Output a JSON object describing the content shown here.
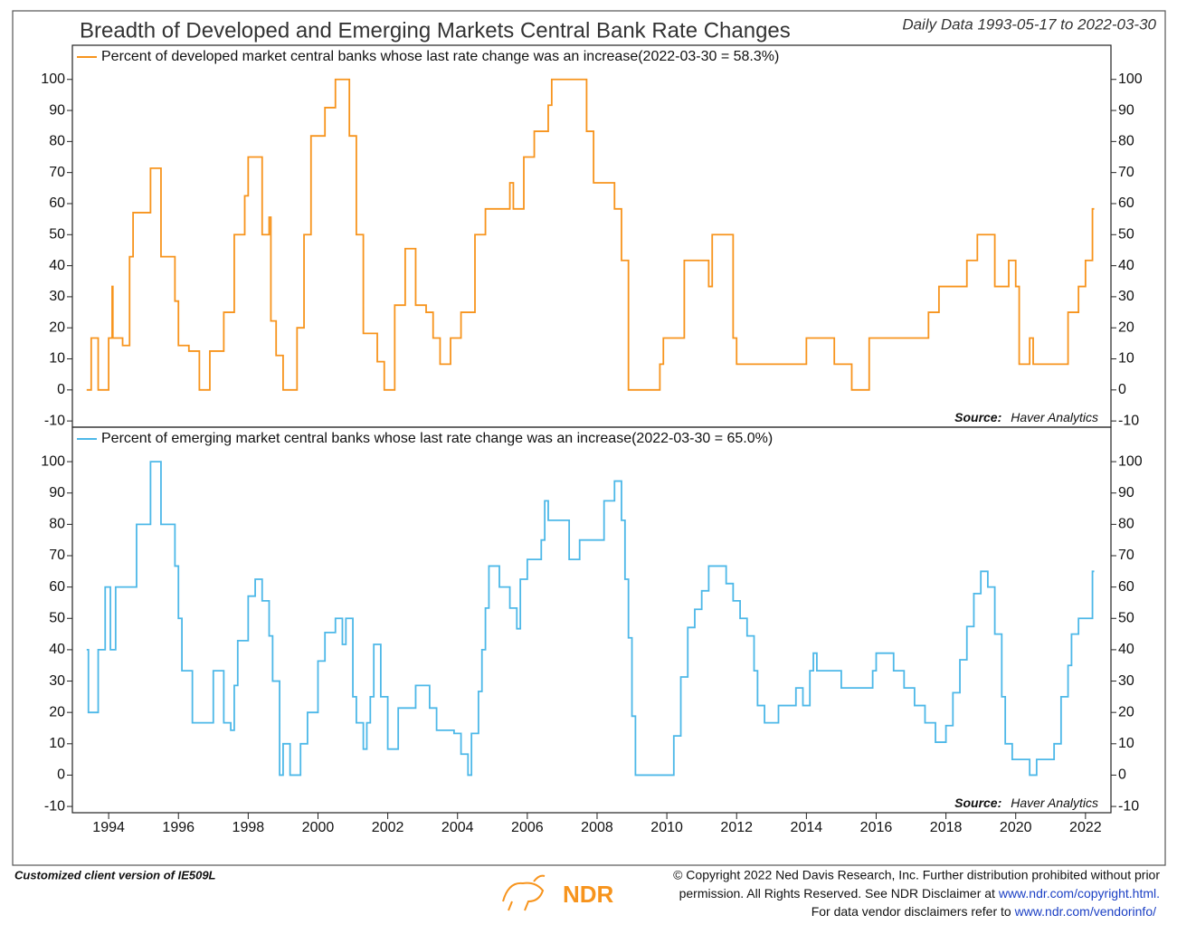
{
  "chart_data": [
    {
      "type": "line",
      "title": "Breadth of Developed and Emerging Markets Central Bank Rate Changes",
      "subtitle": "Daily Data 1993-05-17 to 2022-03-30",
      "source": {
        "label": "Source:",
        "text": "Haver Analytics"
      },
      "xlim": [
        1992.96,
        2022.73
      ],
      "ylim": [
        -12,
        111
      ],
      "yticks": [
        -10,
        0,
        10,
        20,
        30,
        40,
        50,
        60,
        70,
        80,
        90,
        100
      ],
      "series": [
        {
          "name": "Percent of developed market central banks whose last rate change was an increase(2022-03-30 = 58.3%)",
          "color": "#f7941d",
          "x": [
            1993.37,
            1993.5,
            1993.5,
            1993.7,
            1993.7,
            1994.0,
            1994.0,
            1994.1,
            1994.1,
            1994.12,
            1994.12,
            1994.4,
            1994.4,
            1994.6,
            1994.6,
            1994.7,
            1994.7,
            1995.2,
            1995.2,
            1995.5,
            1995.5,
            1995.9,
            1995.9,
            1996.0,
            1996.0,
            1996.3,
            1996.3,
            1996.6,
            1996.6,
            1996.9,
            1996.9,
            1997.3,
            1997.3,
            1997.6,
            1997.6,
            1997.9,
            1997.9,
            1998.0,
            1998.0,
            1998.4,
            1998.4,
            1998.6,
            1998.6,
            1998.65,
            1998.65,
            1998.8,
            1998.8,
            1999.0,
            1999.0,
            1999.4,
            1999.4,
            1999.6,
            1999.6,
            1999.8,
            1999.8,
            2000.2,
            2000.2,
            2000.5,
            2000.5,
            2000.9,
            2000.9,
            2001.1,
            2001.1,
            2001.3,
            2001.3,
            2001.7,
            2001.7,
            2001.9,
            2001.9,
            2002.2,
            2002.2,
            2002.5,
            2002.5,
            2002.8,
            2002.8,
            2003.1,
            2003.1,
            2003.3,
            2003.3,
            2003.5,
            2003.5,
            2003.8,
            2003.8,
            2004.1,
            2004.1,
            2004.5,
            2004.5,
            2004.8,
            2004.8,
            2005.5,
            2005.5,
            2005.6,
            2005.6,
            2005.9,
            2005.9,
            2006.2,
            2006.2,
            2006.6,
            2006.6,
            2006.7,
            2006.7,
            2007.7,
            2007.7,
            2007.9,
            2007.9,
            2008.5,
            2008.5,
            2008.7,
            2008.7,
            2008.9,
            2008.9,
            2009.8,
            2009.8,
            2009.9,
            2009.9,
            2010.5,
            2010.5,
            2011.2,
            2011.2,
            2011.3,
            2011.3,
            2011.9,
            2011.9,
            2012.0,
            2012.0,
            2014.0,
            2014.0,
            2014.8,
            2014.8,
            2015.3,
            2015.3,
            2015.8,
            2015.8,
            2017.5,
            2017.5,
            2017.8,
            2017.8,
            2018.6,
            2018.6,
            2018.9,
            2018.9,
            2019.4,
            2019.4,
            2019.8,
            2019.8,
            2020.0,
            2020.0,
            2020.1,
            2020.1,
            2020.4,
            2020.4,
            2020.5,
            2020.5,
            2021.5,
            2021.5,
            2021.8,
            2021.8,
            2022.0,
            2022.0,
            2022.2,
            2022.2,
            2022.25
          ],
          "values": [
            0,
            0,
            16.7,
            16.7,
            0,
            0,
            16.7,
            16.7,
            33.3,
            33.3,
            16.7,
            16.7,
            14.3,
            14.3,
            42.9,
            42.9,
            57.1,
            57.1,
            71.4,
            71.4,
            42.9,
            42.9,
            28.6,
            28.6,
            14.3,
            14.3,
            12.5,
            12.5,
            0,
            0,
            12.5,
            12.5,
            25,
            25,
            50,
            50,
            62.5,
            62.5,
            75,
            75,
            50,
            50,
            55.6,
            55.6,
            22.2,
            22.2,
            11.1,
            11.1,
            0,
            0,
            20,
            20,
            50,
            50,
            81.8,
            81.8,
            90.9,
            90.9,
            100,
            100,
            81.8,
            81.8,
            50,
            50,
            18.2,
            18.2,
            9.1,
            9.1,
            0,
            0,
            27.3,
            27.3,
            45.5,
            45.5,
            27.3,
            27.3,
            25,
            25,
            16.7,
            16.7,
            8.3,
            8.3,
            16.7,
            16.7,
            25,
            25,
            50,
            50,
            58.3,
            58.3,
            66.7,
            66.7,
            58.3,
            58.3,
            75,
            75,
            83.3,
            83.3,
            91.7,
            91.7,
            100,
            100,
            83.3,
            83.3,
            66.7,
            66.7,
            58.3,
            58.3,
            41.7,
            41.7,
            0,
            0,
            8.3,
            8.3,
            16.7,
            16.7,
            41.7,
            41.7,
            33.3,
            33.3,
            50,
            50,
            16.7,
            16.7,
            8.3,
            8.3,
            16.7,
            16.7,
            8.3,
            8.3,
            0,
            0,
            16.7,
            16.7,
            25,
            25,
            33.3,
            33.3,
            41.7,
            41.7,
            50,
            50,
            33.3,
            33.3,
            41.7,
            41.7,
            33.3,
            33.3,
            8.3,
            8.3,
            16.7,
            16.7,
            8.3,
            8.3,
            25,
            25,
            33.3,
            33.3,
            41.7,
            41.7,
            58.3,
            58.3
          ]
        }
      ]
    },
    {
      "type": "line",
      "source": {
        "label": "Source:",
        "text": "Haver Analytics"
      },
      "xlim": [
        1992.96,
        2022.73
      ],
      "ylim": [
        -12,
        111
      ],
      "xticks": [
        1994,
        1996,
        1998,
        2000,
        2002,
        2004,
        2006,
        2008,
        2010,
        2012,
        2014,
        2016,
        2018,
        2020,
        2022
      ],
      "yticks": [
        -10,
        0,
        10,
        20,
        30,
        40,
        50,
        60,
        70,
        80,
        90,
        100
      ],
      "series": [
        {
          "name": "Percent of emerging market central banks whose last rate change was an increase(2022-03-30 = 65.0%)",
          "color": "#4db8e8",
          "x": [
            1993.37,
            1993.42,
            1993.42,
            1993.7,
            1993.7,
            1993.9,
            1993.9,
            1994.05,
            1994.05,
            1994.2,
            1994.2,
            1994.8,
            1994.8,
            1995.2,
            1995.2,
            1995.5,
            1995.5,
            1995.9,
            1995.9,
            1996.0,
            1996.0,
            1996.1,
            1996.1,
            1996.4,
            1996.4,
            1997.0,
            1997.0,
            1997.3,
            1997.3,
            1997.5,
            1997.5,
            1997.6,
            1997.6,
            1997.7,
            1997.7,
            1998.0,
            1998.0,
            1998.2,
            1998.2,
            1998.4,
            1998.4,
            1998.6,
            1998.6,
            1998.7,
            1998.7,
            1998.9,
            1998.9,
            1999.0,
            1999.0,
            1999.2,
            1999.2,
            1999.5,
            1999.5,
            1999.7,
            1999.7,
            2000.0,
            2000.0,
            2000.2,
            2000.2,
            2000.5,
            2000.5,
            2000.7,
            2000.7,
            2000.8,
            2000.8,
            2001.0,
            2001.0,
            2001.1,
            2001.1,
            2001.3,
            2001.3,
            2001.4,
            2001.4,
            2001.5,
            2001.5,
            2001.6,
            2001.6,
            2001.8,
            2001.8,
            2002.0,
            2002.0,
            2002.3,
            2002.3,
            2002.8,
            2002.8,
            2003.2,
            2003.2,
            2003.4,
            2003.4,
            2003.9,
            2003.9,
            2004.1,
            2004.1,
            2004.3,
            2004.3,
            2004.4,
            2004.4,
            2004.6,
            2004.6,
            2004.7,
            2004.7,
            2004.8,
            2004.8,
            2004.9,
            2004.9,
            2005.2,
            2005.2,
            2005.5,
            2005.5,
            2005.7,
            2005.7,
            2005.8,
            2005.8,
            2006.0,
            2006.0,
            2006.4,
            2006.4,
            2006.5,
            2006.5,
            2006.6,
            2006.6,
            2007.2,
            2007.2,
            2007.5,
            2007.5,
            2008.2,
            2008.2,
            2008.5,
            2008.5,
            2008.7,
            2008.7,
            2008.8,
            2008.8,
            2008.9,
            2008.9,
            2009.0,
            2009.0,
            2009.1,
            2009.1,
            2010.2,
            2010.2,
            2010.4,
            2010.4,
            2010.6,
            2010.6,
            2010.8,
            2010.8,
            2011.0,
            2011.0,
            2011.2,
            2011.2,
            2011.7,
            2011.7,
            2011.9,
            2011.9,
            2012.1,
            2012.1,
            2012.3,
            2012.3,
            2012.5,
            2012.5,
            2012.6,
            2012.6,
            2012.8,
            2012.8,
            2013.2,
            2013.2,
            2013.7,
            2013.7,
            2013.9,
            2013.9,
            2014.1,
            2014.1,
            2014.2,
            2014.2,
            2014.3,
            2014.3,
            2015.0,
            2015.0,
            2015.9,
            2015.9,
            2016.0,
            2016.0,
            2016.5,
            2016.5,
            2016.8,
            2016.8,
            2017.1,
            2017.1,
            2017.4,
            2017.4,
            2017.7,
            2017.7,
            2018.0,
            2018.0,
            2018.2,
            2018.2,
            2018.4,
            2018.4,
            2018.6,
            2018.6,
            2018.8,
            2018.8,
            2019.0,
            2019.0,
            2019.2,
            2019.2,
            2019.4,
            2019.4,
            2019.6,
            2019.6,
            2019.7,
            2019.7,
            2019.9,
            2019.9,
            2020.4,
            2020.4,
            2020.6,
            2020.6,
            2021.1,
            2021.1,
            2021.3,
            2021.3,
            2021.5,
            2021.5,
            2021.6,
            2021.6,
            2021.8,
            2021.8,
            2022.2,
            2022.2,
            2022.25
          ],
          "values": [
            40,
            40,
            20,
            20,
            40,
            40,
            60,
            60,
            40,
            40,
            60,
            60,
            80,
            80,
            100,
            100,
            80,
            80,
            66.7,
            66.7,
            50,
            50,
            33.3,
            33.3,
            16.7,
            16.7,
            33.3,
            33.3,
            16.7,
            16.7,
            14.3,
            14.3,
            28.6,
            28.6,
            42.9,
            42.9,
            57.1,
            57.1,
            62.5,
            62.5,
            55.6,
            55.6,
            44.4,
            44.4,
            30,
            30,
            0,
            0,
            10,
            10,
            0,
            0,
            10,
            10,
            20,
            20,
            36.4,
            36.4,
            45.5,
            45.5,
            50,
            50,
            41.7,
            41.7,
            50,
            50,
            25,
            25,
            16.7,
            16.7,
            8.3,
            8.3,
            16.7,
            16.7,
            25,
            25,
            41.7,
            41.7,
            25,
            25,
            8.3,
            8.3,
            21.4,
            21.4,
            28.6,
            28.6,
            21.4,
            21.4,
            14.3,
            14.3,
            13.3,
            13.3,
            6.7,
            6.7,
            0,
            0,
            13.3,
            13.3,
            26.7,
            26.7,
            40,
            40,
            53.3,
            53.3,
            66.7,
            66.7,
            60,
            60,
            53.3,
            53.3,
            46.7,
            46.7,
            62.5,
            62.5,
            68.8,
            68.8,
            75,
            75,
            87.5,
            87.5,
            81.3,
            81.3,
            68.8,
            68.8,
            75,
            75,
            87.5,
            87.5,
            93.8,
            93.8,
            81.3,
            81.3,
            62.5,
            62.5,
            43.8,
            43.8,
            18.8,
            18.8,
            0,
            0,
            12.5,
            12.5,
            31.3,
            31.3,
            47.1,
            47.1,
            52.9,
            52.9,
            58.8,
            58.8,
            66.7,
            66.7,
            61.1,
            61.1,
            55.6,
            55.6,
            50,
            50,
            44.4,
            44.4,
            33.3,
            33.3,
            22.2,
            22.2,
            16.7,
            16.7,
            22.2,
            22.2,
            27.8,
            27.8,
            22.2,
            22.2,
            33.3,
            33.3,
            38.9,
            38.9,
            33.3,
            33.3,
            27.8,
            27.8,
            33.3,
            33.3,
            38.9,
            38.9,
            33.3,
            33.3,
            27.8,
            27.8,
            22.2,
            22.2,
            16.7,
            16.7,
            10.5,
            10.5,
            15.8,
            15.8,
            26.3,
            26.3,
            36.8,
            36.8,
            47.4,
            47.4,
            57.9,
            57.9,
            65,
            65,
            60,
            60,
            45,
            45,
            25,
            25,
            10,
            10,
            5,
            5,
            0,
            0,
            5,
            5,
            10,
            10,
            25,
            25,
            35,
            35,
            45,
            45,
            50,
            50,
            65,
            65
          ]
        }
      ]
    }
  ],
  "footer": {
    "client_note": "Customized client version of IE509L",
    "logo": "NDR",
    "copyright": [
      "© Copyright 2022 Ned Davis Research, Inc. Further distribution prohibited without prior",
      "permission. All Rights Reserved. See NDR Disclaimer at ",
      "For data vendor disclaimers refer to "
    ],
    "links": [
      "www.ndr.com/copyright.html.",
      "www.ndr.com/vendorinfo/"
    ]
  }
}
